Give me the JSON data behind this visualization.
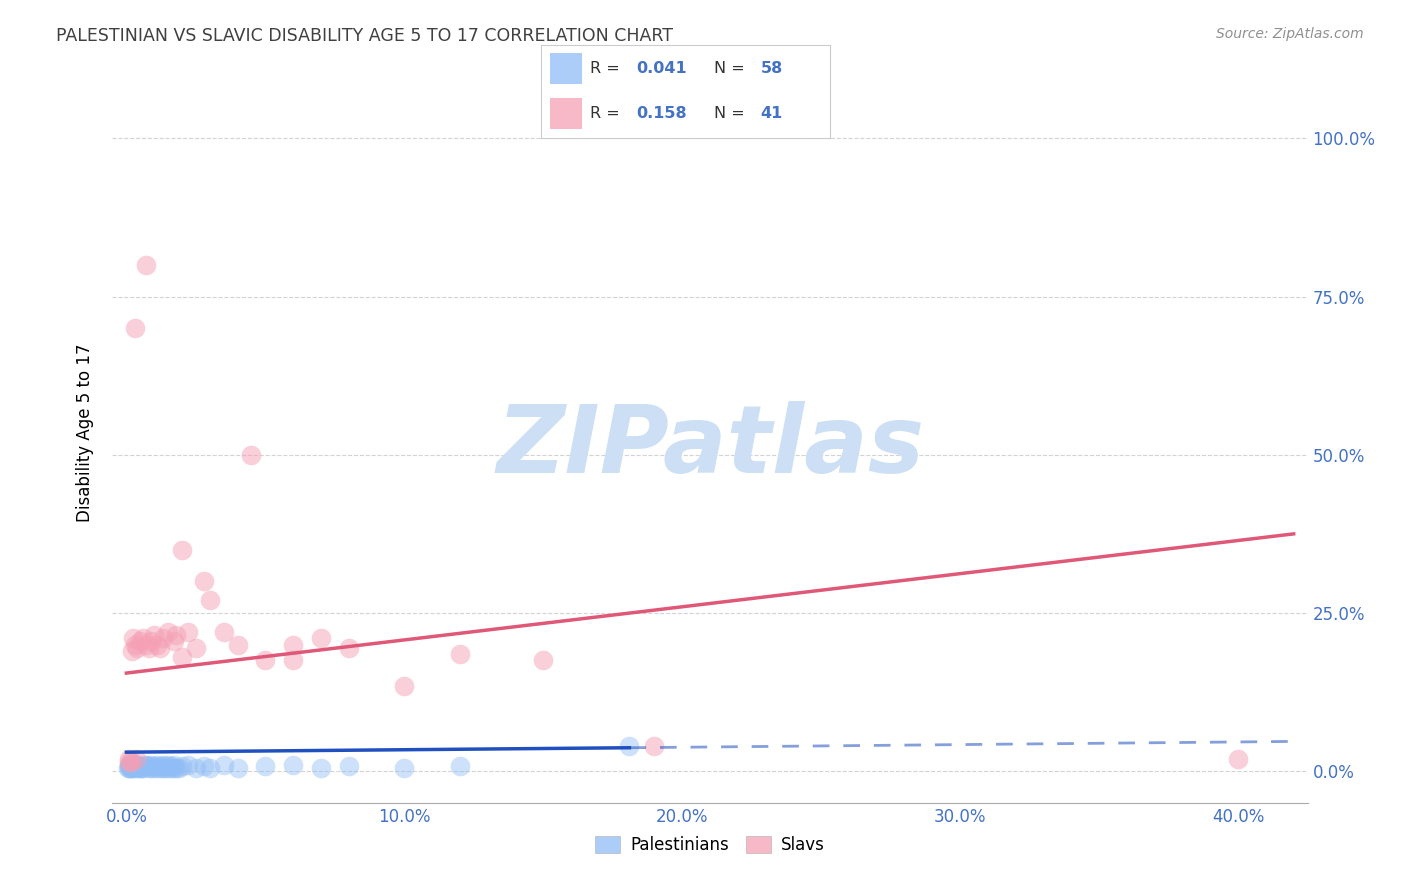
{
  "title": "PALESTINIAN VS SLAVIC DISABILITY AGE 5 TO 17 CORRELATION CHART",
  "source": "Source: ZipAtlas.com",
  "ylabel": "Disability Age 5 to 17",
  "xlim": [
    -0.005,
    0.425
  ],
  "ylim": [
    -0.05,
    1.12
  ],
  "x_ticks": [
    0.0,
    0.1,
    0.2,
    0.3,
    0.4
  ],
  "x_tick_labels": [
    "0.0%",
    "10.0%",
    "20.0%",
    "30.0%",
    "40.0%"
  ],
  "y_ticks": [
    0.0,
    0.25,
    0.5,
    0.75,
    1.0
  ],
  "y_tick_labels": [
    "0.0%",
    "25.0%",
    "50.0%",
    "75.0%",
    "100.0%"
  ],
  "pal_color": "#90bdf5",
  "slav_color": "#f5a0b5",
  "pal_line_color": "#2050c0",
  "slav_line_color": "#e05878",
  "background_color": "#ffffff",
  "watermark_color": "#ccdff5",
  "tick_color": "#4472c4",
  "grid_color": "#c8c8c8",
  "title_color": "#404040",
  "source_color": "#909090",
  "legend_R_pal": "0.041",
  "legend_N_pal": "58",
  "legend_R_slav": "0.158",
  "legend_N_slav": "41",
  "slav_line_x0": 0.0,
  "slav_line_y0": 0.155,
  "slav_line_x1": 0.42,
  "slav_line_y1": 0.375,
  "pal_line_solid_x0": 0.0,
  "pal_line_solid_y0": 0.03,
  "pal_line_solid_x1": 0.181,
  "pal_line_solid_y1": 0.037,
  "pal_line_dash_x0": 0.181,
  "pal_line_dash_y0": 0.037,
  "pal_line_dash_x1": 0.42,
  "pal_line_dash_y1": 0.047,
  "pal_x": [
    0.0005,
    0.001,
    0.0015,
    0.001,
    0.002,
    0.0008,
    0.0012,
    0.0018,
    0.0025,
    0.003,
    0.0035,
    0.004,
    0.0045,
    0.003,
    0.005,
    0.004,
    0.0055,
    0.005,
    0.006,
    0.007,
    0.006,
    0.008,
    0.007,
    0.009,
    0.008,
    0.01,
    0.009,
    0.011,
    0.01,
    0.012,
    0.011,
    0.013,
    0.012,
    0.014,
    0.013,
    0.015,
    0.014,
    0.016,
    0.015,
    0.017,
    0.016,
    0.018,
    0.017,
    0.019,
    0.02,
    0.022,
    0.025,
    0.028,
    0.03,
    0.035,
    0.04,
    0.05,
    0.06,
    0.07,
    0.08,
    0.1,
    0.181,
    0.12
  ],
  "pal_y": [
    0.005,
    0.005,
    0.005,
    0.01,
    0.005,
    0.008,
    0.005,
    0.01,
    0.005,
    0.008,
    0.005,
    0.008,
    0.005,
    0.012,
    0.005,
    0.01,
    0.005,
    0.008,
    0.005,
    0.01,
    0.008,
    0.005,
    0.01,
    0.005,
    0.008,
    0.005,
    0.01,
    0.005,
    0.008,
    0.005,
    0.01,
    0.005,
    0.008,
    0.005,
    0.01,
    0.005,
    0.008,
    0.005,
    0.01,
    0.005,
    0.008,
    0.005,
    0.01,
    0.005,
    0.008,
    0.01,
    0.005,
    0.008,
    0.005,
    0.01,
    0.005,
    0.008,
    0.01,
    0.005,
    0.008,
    0.005,
    0.04,
    0.008
  ],
  "slav_x": [
    0.0008,
    0.001,
    0.0015,
    0.002,
    0.0025,
    0.003,
    0.0035,
    0.004,
    0.005,
    0.006,
    0.007,
    0.008,
    0.009,
    0.01,
    0.011,
    0.012,
    0.013,
    0.015,
    0.017,
    0.018,
    0.02,
    0.022,
    0.025,
    0.028,
    0.03,
    0.035,
    0.04,
    0.045,
    0.05,
    0.06,
    0.07,
    0.08,
    0.1,
    0.12,
    0.15,
    0.19,
    0.4,
    0.003,
    0.007,
    0.02,
    0.06
  ],
  "slav_y": [
    0.015,
    0.02,
    0.015,
    0.19,
    0.21,
    0.2,
    0.02,
    0.195,
    0.205,
    0.21,
    0.2,
    0.195,
    0.205,
    0.215,
    0.2,
    0.195,
    0.21,
    0.22,
    0.205,
    0.215,
    0.35,
    0.22,
    0.195,
    0.3,
    0.27,
    0.22,
    0.2,
    0.5,
    0.175,
    0.2,
    0.21,
    0.195,
    0.135,
    0.185,
    0.175,
    0.04,
    0.02,
    0.7,
    0.8,
    0.18,
    0.175
  ]
}
